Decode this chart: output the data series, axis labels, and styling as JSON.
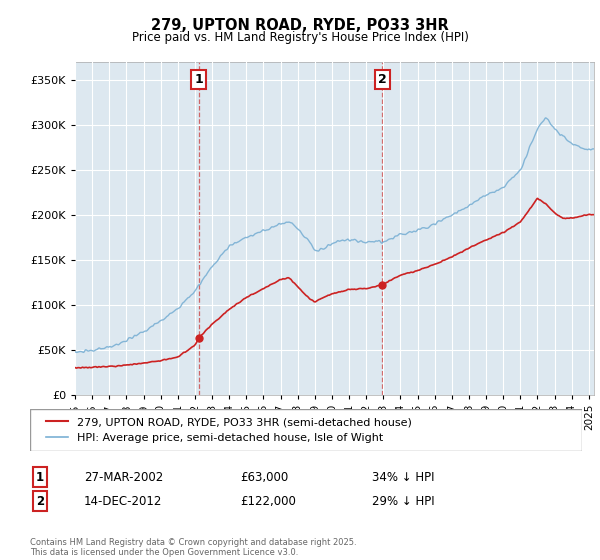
{
  "title": "279, UPTON ROAD, RYDE, PO33 3HR",
  "subtitle": "Price paid vs. HM Land Registry's House Price Index (HPI)",
  "yticks": [
    0,
    50000,
    100000,
    150000,
    200000,
    250000,
    300000,
    350000
  ],
  "ylim": [
    0,
    370000
  ],
  "xlim_start": 1995.0,
  "xlim_end": 2025.3,
  "vline1_x": 2002.23,
  "vline2_x": 2012.95,
  "annotation1": {
    "label": "1",
    "date": "27-MAR-2002",
    "price": "£63,000",
    "pct": "34% ↓ HPI"
  },
  "annotation2": {
    "label": "2",
    "date": "14-DEC-2012",
    "price": "£122,000",
    "pct": "29% ↓ HPI"
  },
  "legend_red": "279, UPTON ROAD, RYDE, PO33 3HR (semi-detached house)",
  "legend_blue": "HPI: Average price, semi-detached house, Isle of Wight",
  "footer": "Contains HM Land Registry data © Crown copyright and database right 2025.\nThis data is licensed under the Open Government Licence v3.0.",
  "bg_color": "#ffffff",
  "plot_bg": "#dde8f0",
  "red_color": "#cc2222",
  "blue_color": "#7ab0d4",
  "grid_color": "#ffffff",
  "hpi_keypoints_t": [
    1995,
    1996,
    1997,
    1998,
    1999,
    2000,
    2001,
    2002,
    2003,
    2004,
    2005,
    2006,
    2007,
    2007.5,
    2008,
    2008.5,
    2009,
    2009.5,
    2010,
    2011,
    2012,
    2013,
    2014,
    2015,
    2016,
    2017,
    2018,
    2019,
    2020,
    2021,
    2022,
    2022.5,
    2023,
    2023.5,
    2024,
    2025
  ],
  "hpi_keypoints_v": [
    47000,
    49000,
    53000,
    60000,
    70000,
    82000,
    96000,
    115000,
    142000,
    165000,
    175000,
    182000,
    190000,
    192000,
    185000,
    175000,
    160000,
    162000,
    168000,
    172000,
    170000,
    170000,
    178000,
    183000,
    190000,
    200000,
    210000,
    222000,
    230000,
    250000,
    295000,
    308000,
    295000,
    287000,
    278000,
    272000
  ],
  "red_keypoints_t": [
    1995,
    1996,
    1997,
    1998,
    1999,
    2000,
    2001,
    2002.0,
    2002.23,
    2003,
    2004,
    2005,
    2006,
    2007,
    2007.5,
    2008.5,
    2009,
    2009.5,
    2010,
    2011,
    2012.0,
    2012.95,
    2013.5,
    2014,
    2015,
    2016,
    2017,
    2018,
    2019,
    2020,
    2021,
    2021.5,
    2022,
    2022.5,
    2023,
    2023.5,
    2024,
    2025
  ],
  "red_keypoints_v": [
    30000,
    30500,
    31500,
    33000,
    35000,
    38000,
    42000,
    55000,
    63000,
    78000,
    95000,
    108000,
    118000,
    128000,
    130000,
    110000,
    103000,
    108000,
    112000,
    117000,
    118000,
    122000,
    128000,
    133000,
    138000,
    145000,
    153000,
    163000,
    172000,
    180000,
    192000,
    205000,
    218000,
    212000,
    202000,
    196000,
    196000,
    200000
  ]
}
